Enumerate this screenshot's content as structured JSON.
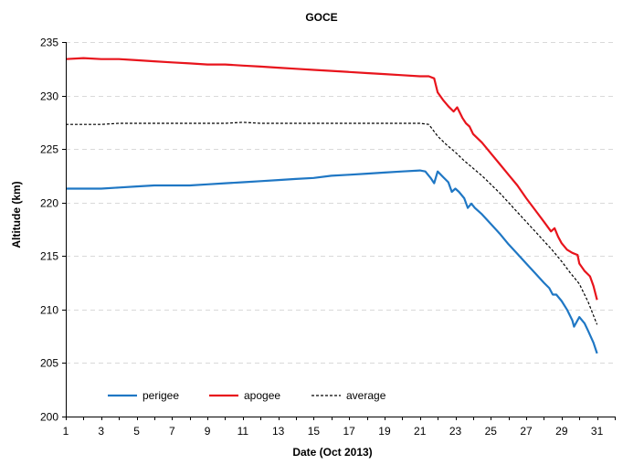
{
  "chart_data": {
    "type": "line",
    "title": "GOCE",
    "xlabel": "Date (Oct 2013)",
    "ylabel": "Altitude (km)",
    "xlim": [
      1,
      32
    ],
    "ylim": [
      200,
      235
    ],
    "x_ticks": [
      1,
      3,
      5,
      7,
      9,
      11,
      13,
      15,
      17,
      19,
      21,
      23,
      25,
      27,
      29,
      31
    ],
    "y_ticks": [
      200,
      205,
      210,
      215,
      220,
      225,
      230,
      235
    ],
    "grid": "horizontal dashed",
    "legend_position": "bottom-left",
    "series": [
      {
        "name": "perigee",
        "color": "#1f77c4",
        "style": "solid",
        "x": [
          1,
          2,
          3,
          4,
          5,
          6,
          7,
          8,
          9,
          10,
          11,
          12,
          13,
          14,
          15,
          16,
          17,
          18,
          19,
          20,
          21,
          21.3,
          21.6,
          21.8,
          22.0,
          22.3,
          22.6,
          22.8,
          23.0,
          23.2,
          23.5,
          23.7,
          23.9,
          24.1,
          24.5,
          25.0,
          25.5,
          26.0,
          26.5,
          27.0,
          27.5,
          28.0,
          28.3,
          28.5,
          28.7,
          29.0,
          29.3,
          29.6,
          29.7,
          30.0,
          30.3,
          30.5,
          30.8,
          31.0
        ],
        "values": [
          221.3,
          221.3,
          221.3,
          221.4,
          221.5,
          221.6,
          221.6,
          221.6,
          221.7,
          221.8,
          221.9,
          222.0,
          222.1,
          222.2,
          222.3,
          222.5,
          222.6,
          222.7,
          222.8,
          222.9,
          223.0,
          222.9,
          222.3,
          221.8,
          222.9,
          222.4,
          221.9,
          221.0,
          221.3,
          221.0,
          220.4,
          219.5,
          219.9,
          219.5,
          218.9,
          218.0,
          217.1,
          216.1,
          215.2,
          214.3,
          213.4,
          212.5,
          212.0,
          211.4,
          211.4,
          210.8,
          210.0,
          209.0,
          208.4,
          209.3,
          208.7,
          208.0,
          206.9,
          205.9
        ]
      },
      {
        "name": "apogee",
        "color": "#e8141c",
        "style": "solid",
        "x": [
          1,
          2,
          3,
          4,
          5,
          6,
          7,
          8,
          9,
          10,
          11,
          12,
          13,
          14,
          15,
          16,
          17,
          18,
          19,
          20,
          21,
          21.5,
          21.8,
          22.0,
          22.3,
          22.6,
          22.9,
          23.1,
          23.4,
          23.6,
          23.8,
          24.0,
          24.5,
          25.0,
          25.5,
          26.0,
          26.5,
          27.0,
          27.5,
          28.0,
          28.4,
          28.6,
          28.8,
          29.0,
          29.3,
          29.6,
          29.9,
          30.0,
          30.3,
          30.6,
          30.8,
          31.0
        ],
        "values": [
          233.4,
          233.5,
          233.4,
          233.4,
          233.3,
          233.2,
          233.1,
          233.0,
          232.9,
          232.9,
          232.8,
          232.7,
          232.6,
          232.5,
          232.4,
          232.3,
          232.2,
          232.1,
          232.0,
          231.9,
          231.8,
          231.8,
          231.6,
          230.3,
          229.6,
          229.0,
          228.5,
          228.9,
          227.9,
          227.4,
          227.1,
          226.4,
          225.6,
          224.6,
          223.6,
          222.6,
          221.6,
          220.4,
          219.3,
          218.2,
          217.3,
          217.6,
          216.8,
          216.2,
          215.6,
          215.3,
          215.1,
          214.3,
          213.6,
          213.1,
          212.2,
          210.9
        ]
      },
      {
        "name": "average",
        "color": "#000000",
        "style": "dashed",
        "x": [
          1,
          2,
          3,
          4,
          5,
          6,
          7,
          8,
          9,
          10,
          11,
          12,
          13,
          14,
          15,
          16,
          17,
          18,
          19,
          20,
          21,
          21.5,
          22,
          22.5,
          23,
          23.5,
          24,
          24.5,
          25,
          25.5,
          26,
          26.5,
          27,
          27.5,
          28,
          28.5,
          29,
          29.5,
          30,
          30.5,
          31
        ],
        "values": [
          227.3,
          227.3,
          227.3,
          227.4,
          227.4,
          227.4,
          227.4,
          227.4,
          227.4,
          227.4,
          227.5,
          227.4,
          227.4,
          227.4,
          227.4,
          227.4,
          227.4,
          227.4,
          227.4,
          227.4,
          227.4,
          227.3,
          226.2,
          225.4,
          224.7,
          223.9,
          223.2,
          222.5,
          221.7,
          220.9,
          220.0,
          219.1,
          218.2,
          217.3,
          216.4,
          215.5,
          214.5,
          213.4,
          212.4,
          210.7,
          208.6
        ]
      }
    ]
  }
}
